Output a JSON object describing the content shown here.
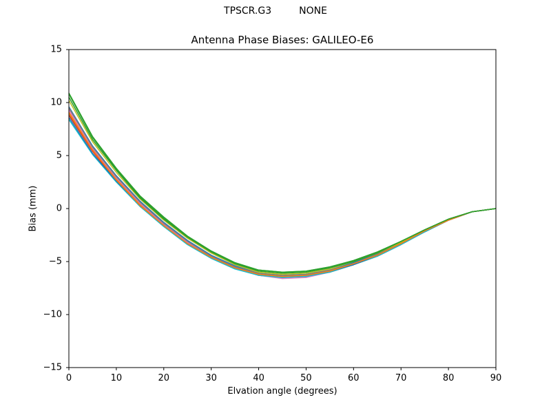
{
  "header": {
    "suptitle": "TPSCR.G3         NONE"
  },
  "chart_data": {
    "type": "line",
    "title": "Antenna Phase Biases: GALILEO-E6",
    "xlabel": "Elvation angle (degrees)",
    "ylabel": "Bias (mm)",
    "xlim": [
      0,
      90
    ],
    "ylim": [
      -15,
      15
    ],
    "xticks": [
      "0",
      "10",
      "20",
      "30",
      "40",
      "50",
      "60",
      "70",
      "80",
      "90"
    ],
    "yticks": [
      "15",
      "10",
      "5",
      "0",
      "−5",
      "−10",
      "−15"
    ],
    "grid": false,
    "x": [
      0,
      5,
      10,
      15,
      20,
      25,
      30,
      35,
      40,
      45,
      50,
      55,
      60,
      65,
      70,
      75,
      80,
      85,
      90
    ],
    "series": [
      {
        "color": "#1f77b4",
        "values": [
          9.6,
          5.9,
          3.1,
          0.7,
          -1.3,
          -3.0,
          -4.4,
          -5.4,
          -6.1,
          -6.3,
          -6.2,
          -5.8,
          -5.1,
          -4.3,
          -3.2,
          -2.0,
          -1.0,
          -0.3,
          0.0
        ]
      },
      {
        "color": "#ff7f0e",
        "values": [
          9.1,
          5.6,
          2.8,
          0.4,
          -1.5,
          -3.2,
          -4.5,
          -5.5,
          -6.2,
          -6.4,
          -6.3,
          -5.9,
          -5.2,
          -4.4,
          -3.3,
          -2.1,
          -1.1,
          -0.3,
          0.0
        ]
      },
      {
        "color": "#2ca02c",
        "values": [
          10.8,
          6.7,
          3.7,
          1.1,
          -0.9,
          -2.7,
          -4.1,
          -5.2,
          -5.8,
          -6.0,
          -5.9,
          -5.5,
          -4.9,
          -4.1,
          -3.1,
          -2.0,
          -1.0,
          -0.3,
          0.0
        ]
      },
      {
        "color": "#d62728",
        "values": [
          8.8,
          5.4,
          2.6,
          0.2,
          -1.6,
          -3.3,
          -4.6,
          -5.6,
          -6.3,
          -6.5,
          -6.4,
          -6.0,
          -5.3,
          -4.5,
          -3.4,
          -2.2,
          -1.1,
          -0.3,
          0.0
        ]
      },
      {
        "color": "#9467bd",
        "values": [
          9.4,
          5.7,
          2.9,
          0.5,
          -1.4,
          -3.1,
          -4.5,
          -5.5,
          -6.2,
          -6.4,
          -6.3,
          -5.9,
          -5.2,
          -4.4,
          -3.3,
          -2.1,
          -1.1,
          -0.3,
          0.0
        ]
      },
      {
        "color": "#8c564b",
        "values": [
          8.9,
          5.5,
          2.7,
          0.3,
          -1.6,
          -3.3,
          -4.6,
          -5.6,
          -6.3,
          -6.5,
          -6.4,
          -6.0,
          -5.3,
          -4.4,
          -3.3,
          -2.1,
          -1.1,
          -0.3,
          0.0
        ]
      },
      {
        "color": "#e377c2",
        "values": [
          9.3,
          5.7,
          2.9,
          0.5,
          -1.5,
          -3.2,
          -4.6,
          -5.6,
          -6.3,
          -6.6,
          -6.5,
          -6.0,
          -5.3,
          -4.4,
          -3.3,
          -2.1,
          -1.1,
          -0.3,
          0.0
        ]
      },
      {
        "color": "#7f7f7f",
        "values": [
          9.5,
          5.8,
          3.0,
          0.6,
          -1.4,
          -3.1,
          -4.5,
          -5.5,
          -6.1,
          -6.3,
          -6.2,
          -5.8,
          -5.2,
          -4.3,
          -3.2,
          -2.1,
          -1.0,
          -0.3,
          0.0
        ]
      },
      {
        "color": "#bcbd22",
        "values": [
          10.2,
          6.3,
          3.4,
          0.9,
          -1.1,
          -2.8,
          -4.2,
          -5.3,
          -6.0,
          -6.2,
          -6.1,
          -5.7,
          -5.0,
          -4.2,
          -3.2,
          -2.0,
          -1.0,
          -0.3,
          0.0
        ]
      },
      {
        "color": "#17becf",
        "values": [
          8.4,
          5.1,
          2.5,
          0.2,
          -1.7,
          -3.4,
          -4.7,
          -5.7,
          -6.3,
          -6.5,
          -6.4,
          -6.0,
          -5.3,
          -4.5,
          -3.4,
          -2.2,
          -1.1,
          -0.3,
          0.0
        ]
      },
      {
        "color": "#1f77b4",
        "values": [
          8.6,
          5.2,
          2.6,
          0.3,
          -1.6,
          -3.3,
          -4.6,
          -5.6,
          -6.2,
          -6.4,
          -6.3,
          -5.9,
          -5.3,
          -4.4,
          -3.3,
          -2.1,
          -1.1,
          -0.3,
          0.0
        ]
      },
      {
        "color": "#ff7f0e",
        "values": [
          9.0,
          5.5,
          2.7,
          0.3,
          -1.6,
          -3.3,
          -4.6,
          -5.6,
          -6.2,
          -6.4,
          -6.3,
          -5.9,
          -5.2,
          -4.4,
          -3.3,
          -2.1,
          -1.1,
          -0.3,
          0.0
        ]
      },
      {
        "color": "#2ca02c",
        "values": [
          10.5,
          6.5,
          3.6,
          1.0,
          -1.0,
          -2.7,
          -4.1,
          -5.2,
          -5.9,
          -6.1,
          -6.0,
          -5.6,
          -5.0,
          -4.2,
          -3.1,
          -2.0,
          -1.0,
          -0.3,
          0.0
        ]
      },
      {
        "color": "#2ca02c",
        "values": [
          10.9,
          6.8,
          3.8,
          1.2,
          -0.8,
          -2.6,
          -4.0,
          -5.1,
          -5.8,
          -6.0,
          -5.9,
          -5.5,
          -4.9,
          -4.1,
          -3.1,
          -2.0,
          -1.0,
          -0.3,
          0.0
        ]
      }
    ]
  }
}
